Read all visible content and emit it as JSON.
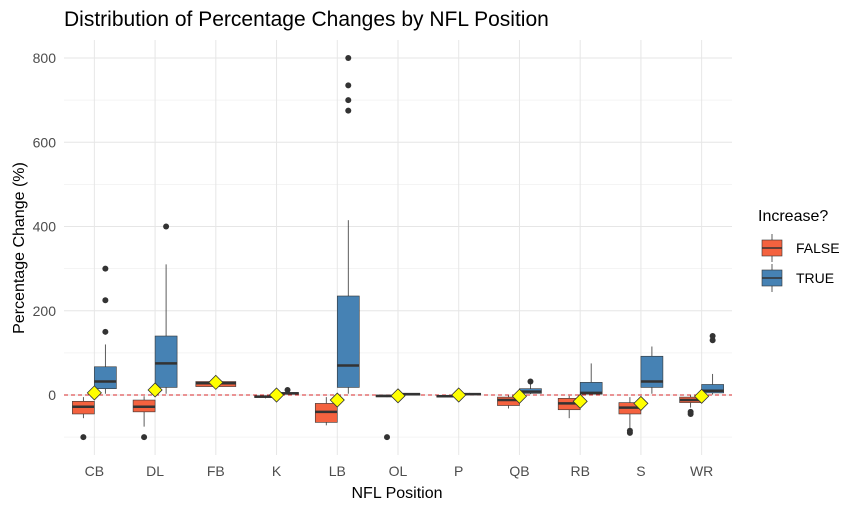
{
  "chart_data": {
    "type": "box",
    "title": "Distribution of Percentage Changes by NFL Position",
    "xlabel": "NFL Position",
    "ylabel": "Percentage Change (%)",
    "categories": [
      "CB",
      "DL",
      "FB",
      "K",
      "LB",
      "OL",
      "P",
      "QB",
      "RB",
      "S",
      "WR"
    ],
    "ylim": [
      -140,
      840
    ],
    "yticks": [
      0,
      200,
      400,
      600,
      800
    ],
    "grid": true,
    "reference_line": {
      "y": 0,
      "color": "#d62728",
      "style": "dashed"
    },
    "legend": {
      "title": "Increase?",
      "placement": "right",
      "entries": [
        {
          "label": "FALSE",
          "color": "#f4623f"
        },
        {
          "label": "TRUE",
          "color": "#4682b4"
        }
      ]
    },
    "mean_marker": {
      "shape": "diamond",
      "color": "#ffff00"
    },
    "series": [
      {
        "name": "FALSE",
        "color": "#f4623f",
        "boxes": [
          {
            "category": "CB",
            "min": -55,
            "q1": -45,
            "median": -28,
            "q3": -15,
            "max": -5,
            "outliers": [
              -100
            ]
          },
          {
            "category": "DL",
            "min": -75,
            "q1": -40,
            "median": -28,
            "q3": -12,
            "max": -3,
            "outliers": [
              -100
            ]
          },
          {
            "category": "FB",
            "min": 18,
            "q1": 20,
            "median": 28,
            "q3": 32,
            "max": 35,
            "outliers": []
          },
          {
            "category": "K",
            "min": -8,
            "q1": -6,
            "median": -4,
            "q3": -2,
            "max": -1,
            "outliers": []
          },
          {
            "category": "LB",
            "min": -72,
            "q1": -65,
            "median": -40,
            "q3": -20,
            "max": -5,
            "outliers": []
          },
          {
            "category": "OL",
            "min": -5,
            "q1": -4,
            "median": -2,
            "q3": -1,
            "max": 0,
            "outliers": [
              -100
            ]
          },
          {
            "category": "P",
            "min": -6,
            "q1": -5,
            "median": -3,
            "q3": -1,
            "max": 0,
            "outliers": []
          },
          {
            "category": "QB",
            "min": -32,
            "q1": -25,
            "median": -12,
            "q3": -5,
            "max": -1,
            "outliers": []
          },
          {
            "category": "RB",
            "min": -55,
            "q1": -35,
            "median": -20,
            "q3": -8,
            "max": -2,
            "outliers": []
          },
          {
            "category": "S",
            "min": -80,
            "q1": -45,
            "median": -30,
            "q3": -18,
            "max": -5,
            "outliers": [
              -85,
              -90
            ]
          },
          {
            "category": "WR",
            "min": -30,
            "q1": -18,
            "median": -12,
            "q3": -5,
            "max": -1,
            "outliers": [
              -40,
              -45
            ]
          }
        ]
      },
      {
        "name": "TRUE",
        "color": "#4682b4",
        "boxes": [
          {
            "category": "CB",
            "min": 3,
            "q1": 15,
            "median": 32,
            "q3": 67,
            "max": 120,
            "outliers": [
              150,
              225,
              300
            ]
          },
          {
            "category": "DL",
            "min": 3,
            "q1": 18,
            "median": 75,
            "q3": 140,
            "max": 310,
            "outliers": [
              400
            ]
          },
          {
            "category": "K",
            "min": 1,
            "q1": 2,
            "median": 4,
            "q3": 6,
            "max": 8,
            "outliers": [
              12
            ]
          },
          {
            "category": "LB",
            "min": 3,
            "q1": 18,
            "median": 70,
            "q3": 235,
            "max": 415,
            "outliers": [
              675,
              700,
              735,
              800
            ]
          },
          {
            "category": "OL",
            "min": 0,
            "q1": 1,
            "median": 2,
            "q3": 3,
            "max": 4,
            "outliers": []
          },
          {
            "category": "P",
            "min": 0,
            "q1": 1,
            "median": 2,
            "q3": 4,
            "max": 5,
            "outliers": []
          },
          {
            "category": "QB",
            "min": 2,
            "q1": 4,
            "median": 8,
            "q3": 15,
            "max": 28,
            "outliers": [
              32
            ]
          },
          {
            "category": "RB",
            "min": 1,
            "q1": 2,
            "median": 5,
            "q3": 30,
            "max": 75,
            "outliers": []
          },
          {
            "category": "S",
            "min": 3,
            "q1": 18,
            "median": 32,
            "q3": 92,
            "max": 115,
            "outliers": []
          },
          {
            "category": "WR",
            "min": 1,
            "q1": 5,
            "median": 10,
            "q3": 25,
            "max": 50,
            "outliers": [
              130,
              140
            ]
          }
        ]
      }
    ],
    "means": [
      {
        "category": "CB",
        "value": 5
      },
      {
        "category": "DL",
        "value": 12
      },
      {
        "category": "FB",
        "value": 30
      },
      {
        "category": "K",
        "value": 0
      },
      {
        "category": "LB",
        "value": -12
      },
      {
        "category": "OL",
        "value": -2
      },
      {
        "category": "P",
        "value": 0
      },
      {
        "category": "QB",
        "value": -3
      },
      {
        "category": "RB",
        "value": -15
      },
      {
        "category": "S",
        "value": -20
      },
      {
        "category": "WR",
        "value": -3
      }
    ]
  }
}
